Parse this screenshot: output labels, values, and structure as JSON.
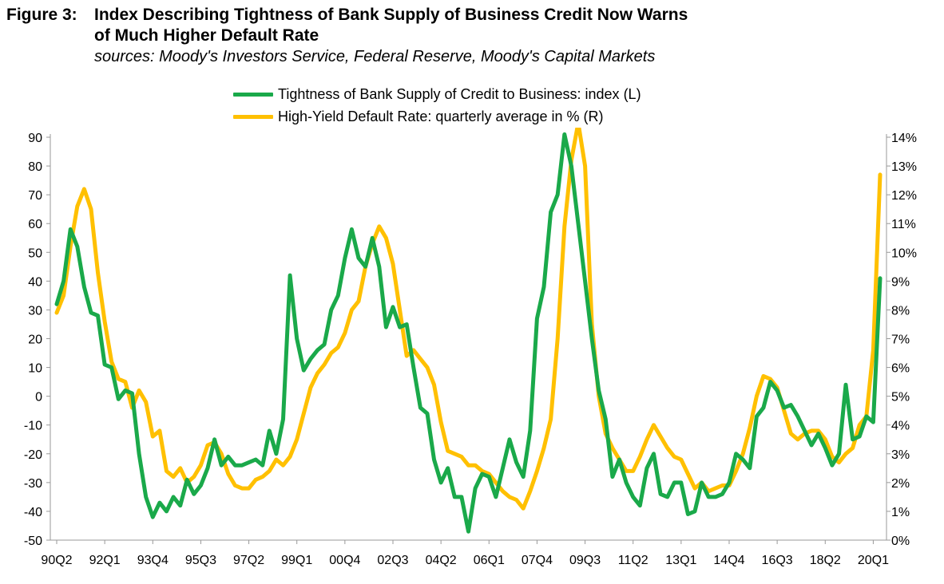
{
  "figure": {
    "label": "Figure 3:",
    "title_line1": "Index Describing Tightness of Bank Supply of Business Credit Now Warns",
    "title_line2": "of Much Higher Default Rate",
    "sources": "sources: Moody's Investors Service, Federal Reserve, Moody's Capital Markets"
  },
  "colors": {
    "index": "#1aa94a",
    "default_rate": "#ffc000",
    "axis": "#999999"
  },
  "chart_data": {
    "type": "line",
    "legend": [
      "Tightness of Bank Supply of Credit to Business: index (L)",
      "High-Yield Default Rate: quarterly average in % (R)"
    ],
    "x_tick_labels": [
      "90Q2",
      "92Q1",
      "93Q4",
      "95Q3",
      "97Q2",
      "99Q1",
      "00Q4",
      "02Q3",
      "04Q2",
      "06Q1",
      "07Q4",
      "09Q3",
      "11Q2",
      "13Q1",
      "14Q4",
      "16Q3",
      "18Q2",
      "20Q1"
    ],
    "x_range": [
      "1990Q2",
      "2020Q2"
    ],
    "y_left": {
      "range": [
        -50,
        90
      ],
      "ticks": [
        90,
        80,
        70,
        60,
        50,
        40,
        30,
        20,
        10,
        0,
        -10,
        -20,
        -30,
        -40,
        -50
      ]
    },
    "y_right": {
      "range": [
        0,
        14
      ],
      "unit": "%",
      "ticks": [
        "14%",
        "13%",
        "12%",
        "11%",
        "10%",
        "9%",
        "8%",
        "7%",
        "6%",
        "5%",
        "4%",
        "3%",
        "2%",
        "1%",
        "0%"
      ]
    },
    "series": [
      {
        "name": "Tightness of Bank Supply of Credit to Business: index (L)",
        "axis": "left",
        "values": [
          32,
          40,
          58,
          52,
          38,
          29,
          28,
          11,
          10,
          -1,
          2,
          1,
          -20,
          -35,
          -42,
          -37,
          -40,
          -35,
          -38,
          -29,
          -34,
          -31,
          -25,
          -15,
          -24,
          -21,
          -24,
          -24,
          -23,
          -22,
          -24,
          -12,
          -20,
          -8,
          42,
          20,
          9,
          13,
          16,
          18,
          30,
          35,
          48,
          58,
          48,
          45,
          55,
          45,
          24,
          31,
          24,
          25,
          10,
          -4,
          -6,
          -22,
          -30,
          -25,
          -35,
          -35,
          -47,
          -32,
          -27,
          -28,
          -35,
          -25,
          -15,
          -23,
          -28,
          -12,
          27,
          38,
          64,
          70,
          91,
          80,
          60,
          40,
          20,
          2,
          -8,
          -28,
          -22,
          -30,
          -35,
          -38,
          -25,
          -20,
          -34,
          -35,
          -30,
          -30,
          -41,
          -40,
          -30,
          -35,
          -35,
          -34,
          -30,
          -20,
          -22,
          -25,
          -7,
          -4,
          5,
          2,
          -4,
          -3,
          -7,
          -12,
          -17,
          -13,
          -18,
          -24,
          -20,
          4,
          -15,
          -14,
          -7,
          -9,
          41
        ]
      },
      {
        "name": "High-Yield Default Rate: quarterly average in % (R)",
        "axis": "right",
        "values": [
          7.9,
          8.5,
          10.2,
          11.6,
          12.2,
          11.5,
          9.3,
          7.6,
          6.2,
          5.6,
          5.5,
          4.6,
          5.2,
          4.8,
          3.6,
          3.8,
          2.4,
          2.2,
          2.5,
          2.0,
          2.2,
          2.6,
          3.3,
          3.4,
          3.0,
          2.3,
          1.9,
          1.8,
          1.8,
          2.1,
          2.2,
          2.4,
          2.8,
          2.6,
          2.9,
          3.5,
          4.4,
          5.3,
          5.8,
          6.1,
          6.5,
          6.7,
          7.2,
          8.0,
          8.3,
          9.5,
          10.3,
          10.9,
          10.5,
          9.6,
          8.0,
          6.4,
          6.6,
          6.3,
          6.0,
          5.4,
          4.1,
          3.1,
          3.0,
          2.9,
          2.6,
          2.6,
          2.4,
          2.3,
          2.0,
          1.7,
          1.5,
          1.4,
          1.1,
          1.7,
          2.4,
          3.2,
          4.2,
          7.0,
          10.9,
          13.2,
          14.5,
          13.0,
          7.5,
          5.0,
          3.7,
          3.2,
          2.8,
          2.4,
          2.4,
          2.9,
          3.5,
          4.0,
          3.6,
          3.2,
          2.9,
          2.8,
          2.3,
          1.8,
          2.0,
          1.7,
          1.8,
          1.9,
          1.9,
          2.4,
          3.0,
          3.9,
          5.0,
          5.7,
          5.6,
          5.3,
          4.5,
          3.7,
          3.5,
          3.7,
          3.8,
          3.8,
          3.5,
          2.9,
          2.7,
          3.0,
          3.2,
          4.0,
          4.3,
          6.6,
          12.7
        ]
      }
    ]
  }
}
